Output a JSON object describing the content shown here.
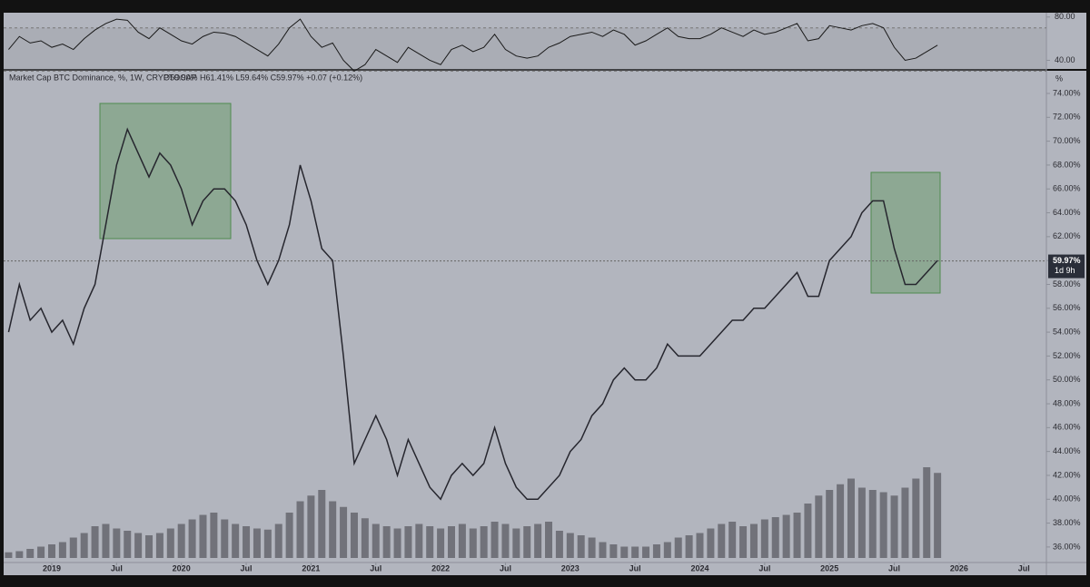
{
  "chart_data": {
    "type": "line",
    "title": "Market Cap BTC Dominance, %, 1W, CRYPTOCAP",
    "ohlc_text": "O59.90% H61.41% L59.64% C59.97% +0.07 (+0.12%)",
    "y_unit": "%",
    "x": [
      "2018-09",
      "2018-10",
      "2018-11",
      "2018-12",
      "2019-01",
      "2019-02",
      "2019-03",
      "2019-04",
      "2019-05",
      "2019-06",
      "2019-07",
      "2019-08",
      "2019-09",
      "2019-10",
      "2019-11",
      "2019-12",
      "2020-01",
      "2020-02",
      "2020-03",
      "2020-04",
      "2020-05",
      "2020-06",
      "2020-07",
      "2020-08",
      "2020-09",
      "2020-10",
      "2020-11",
      "2020-12",
      "2021-01",
      "2021-02",
      "2021-03",
      "2021-04",
      "2021-05",
      "2021-06",
      "2021-07",
      "2021-08",
      "2021-09",
      "2021-10",
      "2021-11",
      "2021-12",
      "2022-01",
      "2022-02",
      "2022-03",
      "2022-04",
      "2022-05",
      "2022-06",
      "2022-07",
      "2022-08",
      "2022-09",
      "2022-10",
      "2022-11",
      "2022-12",
      "2023-01",
      "2023-02",
      "2023-03",
      "2023-04",
      "2023-05",
      "2023-06",
      "2023-07",
      "2023-08",
      "2023-09",
      "2023-10",
      "2023-11",
      "2023-12",
      "2024-01",
      "2024-02",
      "2024-03",
      "2024-04",
      "2024-05",
      "2024-06",
      "2024-07",
      "2024-08",
      "2024-09",
      "2024-10",
      "2024-11",
      "2024-12",
      "2025-01",
      "2025-02",
      "2025-03",
      "2025-04",
      "2025-05",
      "2025-06",
      "2025-07",
      "2025-08",
      "2025-09",
      "2025-10",
      "2025-11"
    ],
    "series": [
      {
        "name": "BTC Dominance",
        "color": "#26262e",
        "values": [
          54,
          58,
          55,
          56,
          54,
          55,
          53,
          56,
          58,
          63,
          68,
          71,
          69,
          67,
          69,
          68,
          66,
          63,
          65,
          66,
          66,
          65,
          63,
          60,
          58,
          60,
          63,
          68,
          65,
          61,
          60,
          52,
          43,
          45,
          47,
          45,
          42,
          45,
          43,
          41,
          40,
          42,
          43,
          42,
          43,
          46,
          43,
          41,
          40,
          40,
          41,
          42,
          44,
          45,
          47,
          48,
          50,
          51,
          50,
          50,
          51,
          53,
          52,
          52,
          52,
          53,
          54,
          55,
          55,
          56,
          56,
          57,
          58,
          59,
          57,
          57,
          60,
          61,
          62,
          64,
          65,
          65,
          61,
          58,
          58,
          59,
          60
        ]
      }
    ],
    "volume": {
      "color": "#55565c",
      "ylim": [
        0,
        100
      ],
      "values": [
        5,
        6,
        8,
        10,
        12,
        14,
        18,
        22,
        28,
        30,
        26,
        24,
        22,
        20,
        22,
        26,
        30,
        34,
        38,
        40,
        34,
        30,
        28,
        26,
        25,
        30,
        40,
        50,
        55,
        60,
        50,
        45,
        40,
        35,
        30,
        28,
        26,
        28,
        30,
        28,
        26,
        28,
        30,
        26,
        28,
        32,
        30,
        26,
        28,
        30,
        32,
        24,
        22,
        20,
        18,
        14,
        12,
        10,
        10,
        10,
        12,
        14,
        18,
        20,
        22,
        26,
        30,
        32,
        28,
        30,
        34,
        36,
        38,
        40,
        48,
        55,
        60,
        65,
        70,
        62,
        60,
        58,
        55,
        62,
        70,
        80,
        75
      ]
    },
    "rsi": {
      "color": "#1a1a1a",
      "ylim": [
        32,
        84
      ],
      "yticks": [
        {
          "value": 80,
          "label": "80.00"
        },
        {
          "value": 40,
          "label": "40.00"
        }
      ],
      "band": [
        70,
        30
      ],
      "values": [
        50,
        62,
        56,
        58,
        52,
        55,
        50,
        60,
        68,
        74,
        78,
        77,
        66,
        60,
        70,
        64,
        58,
        55,
        62,
        66,
        65,
        62,
        56,
        50,
        44,
        55,
        70,
        78,
        62,
        52,
        56,
        40,
        30,
        36,
        50,
        44,
        38,
        52,
        46,
        40,
        36,
        50,
        54,
        48,
        52,
        64,
        50,
        44,
        42,
        44,
        52,
        56,
        62,
        64,
        66,
        62,
        68,
        64,
        54,
        58,
        64,
        70,
        62,
        60,
        60,
        64,
        70,
        66,
        62,
        68,
        64,
        66,
        70,
        74,
        58,
        60,
        72,
        70,
        68,
        72,
        74,
        70,
        52,
        40,
        42,
        48,
        54
      ]
    },
    "ylim": [
      34.7,
      75.9
    ],
    "yticks": [
      {
        "value": 36,
        "label": "36.00%"
      },
      {
        "value": 38,
        "label": "38.00%"
      },
      {
        "value": 40,
        "label": "40.00%"
      },
      {
        "value": 42,
        "label": "42.00%"
      },
      {
        "value": 44,
        "label": "44.00%"
      },
      {
        "value": 46,
        "label": "46.00%"
      },
      {
        "value": 48,
        "label": "48.00%"
      },
      {
        "value": 50,
        "label": "50.00%"
      },
      {
        "value": 52,
        "label": "52.00%"
      },
      {
        "value": 54,
        "label": "54.00%"
      },
      {
        "value": 56,
        "label": "56.00%"
      },
      {
        "value": 58,
        "label": "58.00%"
      },
      {
        "value": 60,
        "label": "60.00%"
      },
      {
        "value": 62,
        "label": "62.00%"
      },
      {
        "value": 64,
        "label": "64.00%"
      },
      {
        "value": 66,
        "label": "66.00%"
      },
      {
        "value": 68,
        "label": "68.00%"
      },
      {
        "value": 70,
        "label": "70.00%"
      },
      {
        "value": 72,
        "label": "72.00%"
      },
      {
        "value": 74,
        "label": "74.00%"
      }
    ],
    "xticks": [
      {
        "value": "2019-01",
        "label": "2019"
      },
      {
        "value": "2019-07",
        "label": "Jul"
      },
      {
        "value": "2020-01",
        "label": "2020"
      },
      {
        "value": "2020-07",
        "label": "Jul"
      },
      {
        "value": "2021-01",
        "label": "2021"
      },
      {
        "value": "2021-07",
        "label": "Jul"
      },
      {
        "value": "2022-01",
        "label": "2022"
      },
      {
        "value": "2022-07",
        "label": "Jul"
      },
      {
        "value": "2023-01",
        "label": "2023"
      },
      {
        "value": "2023-07",
        "label": "Jul"
      },
      {
        "value": "2024-01",
        "label": "2024"
      },
      {
        "value": "2024-07",
        "label": "Jul"
      },
      {
        "value": "2025-01",
        "label": "2025"
      },
      {
        "value": "2025-07",
        "label": "Jul"
      },
      {
        "value": "2026-01",
        "label": "2026"
      },
      {
        "value": "2026-07",
        "label": "Jul"
      }
    ],
    "last_price": {
      "value": 59.97,
      "label": "59.97%"
    },
    "countdown": "1d 9h"
  }
}
